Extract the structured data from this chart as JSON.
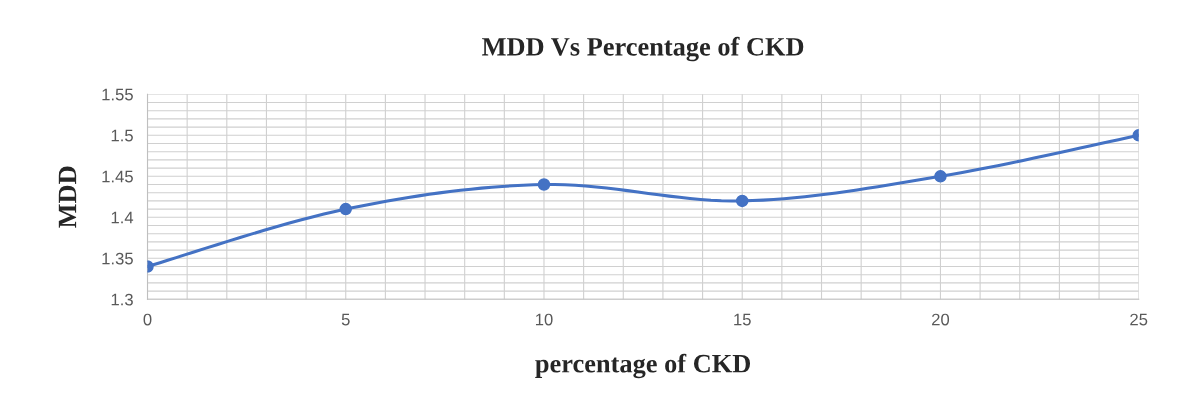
{
  "chart_data": {
    "type": "line",
    "title": "MDD Vs Percentage of CKD",
    "xlabel": "percentage of CKD",
    "ylabel": "MDD",
    "x": [
      0,
      5,
      10,
      15,
      20,
      25
    ],
    "series": [
      {
        "color": "#4472c4",
        "values": [
          1.34,
          1.41,
          1.44,
          1.42,
          1.45,
          1.5
        ]
      }
    ],
    "xlim": [
      0,
      25
    ],
    "xticks": [
      0,
      5,
      10,
      15,
      20,
      25
    ],
    "ylim": [
      1.3,
      1.55
    ],
    "yticks": [
      1.3,
      1.35,
      1.4,
      1.45,
      1.5,
      1.55
    ],
    "grid": true,
    "marker": "circle",
    "line_style": "solid"
  }
}
